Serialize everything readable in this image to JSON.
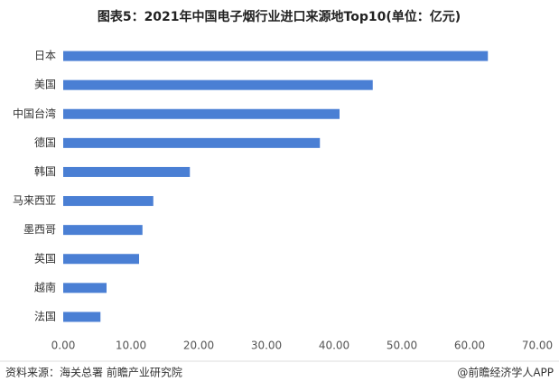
{
  "chart_data": {
    "type": "hbar",
    "title": "图表5：2021年中国电子烟行业进口来源地Top10(单位：亿元)",
    "categories": [
      "日本",
      "美国",
      "中国台湾",
      "德国",
      "韩国",
      "马来西亚",
      "墨西哥",
      "英国",
      "越南",
      "法国"
    ],
    "values": [
      62.7,
      45.7,
      40.8,
      37.9,
      18.7,
      13.3,
      11.7,
      11.2,
      6.4,
      5.5
    ],
    "color": "#4a7fd4",
    "xlim": [
      0,
      70
    ],
    "xticks": [
      {
        "value": 0,
        "label": "0.00"
      },
      {
        "value": 10,
        "label": "10.00"
      },
      {
        "value": 20,
        "label": "20.00"
      },
      {
        "value": 30,
        "label": "30.00"
      },
      {
        "value": 40,
        "label": "40.00"
      },
      {
        "value": 50,
        "label": "50.00"
      },
      {
        "value": 60,
        "label": "60.00"
      },
      {
        "value": 70,
        "label": "70.00"
      }
    ],
    "source": "资料来源：海关总署 前瞻产业研究院",
    "credit": "@前瞻经济学人APP"
  }
}
